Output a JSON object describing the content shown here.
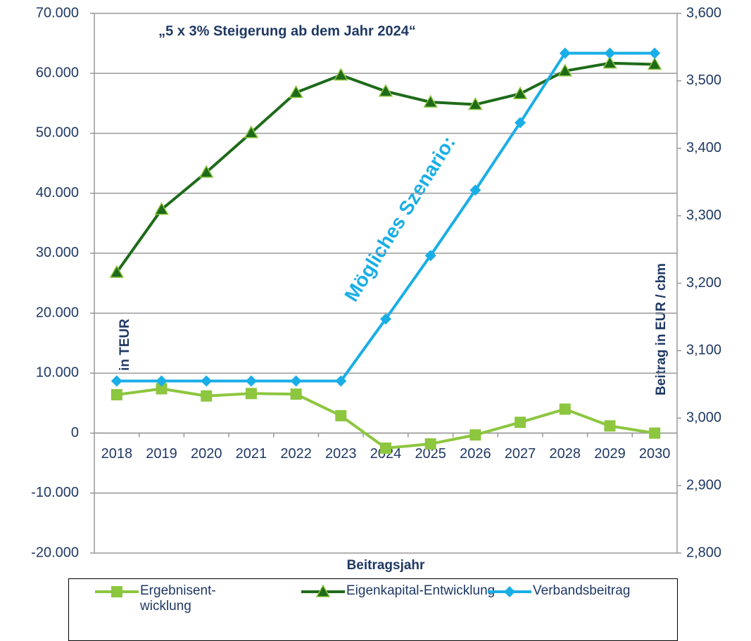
{
  "chart_data": {
    "type": "line",
    "annotations": [
      "„5 x 3% Steigerung ab dem Jahr 2024“",
      "Mögliches Szenario:"
    ],
    "xlabel": "Beitragsjahr",
    "ylabel": "in TEUR",
    "y2label": "Beitrag in EUR / cbm",
    "categories": [
      "2018",
      "2019",
      "2020",
      "2021",
      "2022",
      "2023",
      "2024",
      "2025",
      "2026",
      "2027",
      "2028",
      "2029",
      "2030"
    ],
    "series": [
      {
        "name": "Ergebnisent-wicklung",
        "color": "#8dc63f",
        "marker": "square",
        "values": [
          6400,
          7400,
          6200,
          6600,
          6500,
          2900,
          -2500,
          -1800,
          -300,
          1800,
          4000,
          1200,
          0
        ]
      },
      {
        "name": "Eigenkapital-Entwicklung",
        "color": "#1e6b1a",
        "marker": "triangle",
        "values": [
          26800,
          37300,
          43500,
          50100,
          56800,
          59700,
          57000,
          55200,
          54800,
          56600,
          60400,
          61700,
          61500
        ]
      },
      {
        "name": "Verbandsbeitrag",
        "color": "#1aaee6",
        "marker": "diamond",
        "axis": "y2",
        "values": [
          3055,
          3055,
          3055,
          3055,
          3055,
          3055,
          3147,
          3241,
          3338,
          3438,
          3541,
          3541,
          3541
        ]
      }
    ],
    "ylim": [
      -20000,
      70000
    ],
    "yticks": [
      {
        "value": -20000,
        "label": "-20.000"
      },
      {
        "value": -10000,
        "label": "-10.000"
      },
      0,
      {
        "value": 10000,
        "label": "10.000"
      },
      {
        "value": 20000,
        "label": "20.000"
      },
      {
        "value": 30000,
        "label": "30.000"
      },
      {
        "value": 40000,
        "label": "40.000"
      },
      {
        "value": 50000,
        "label": "50.000"
      },
      {
        "value": 60000,
        "label": "60.000"
      },
      {
        "value": 70000,
        "label": "70.000"
      }
    ],
    "y2lim": [
      2800,
      3600
    ],
    "y2ticks": [
      {
        "value": 2800,
        "label": "2,800"
      },
      {
        "value": 2900,
        "label": "2,900"
      },
      {
        "value": 3000,
        "label": "3,000"
      },
      {
        "value": 3100,
        "label": "3,100"
      },
      {
        "value": 3200,
        "label": "3,200"
      },
      {
        "value": 3300,
        "label": "3,300"
      },
      {
        "value": 3400,
        "label": "3,400"
      },
      {
        "value": 3500,
        "label": "3,500"
      },
      {
        "value": 3600,
        "label": "3,600"
      }
    ],
    "grid": true
  }
}
